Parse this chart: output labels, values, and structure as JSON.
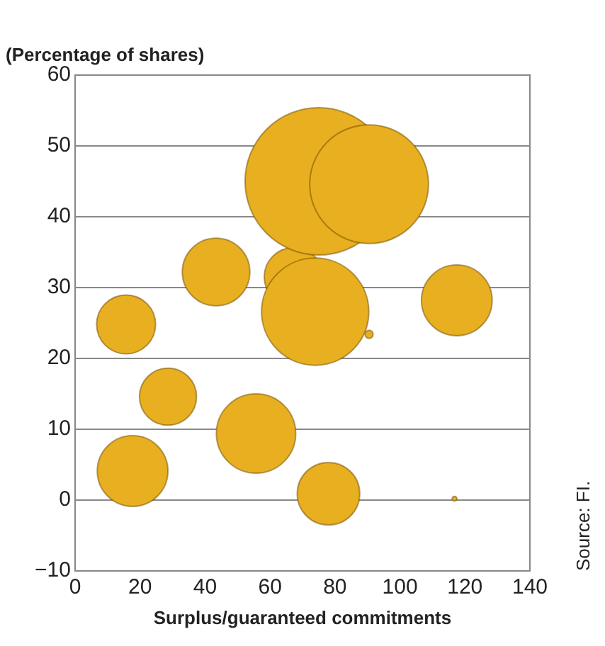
{
  "chart_data": {
    "type": "bubble",
    "title": "(Percentage of shares)",
    "xlabel": "Surplus/guaranteed commitments",
    "x": [
      17.7,
      28.6,
      15.7,
      43.4,
      55.7,
      67.3,
      73.9,
      90.5,
      75,
      90.5,
      78,
      117.5,
      116.8
    ],
    "values": [
      4.1,
      14.6,
      24.8,
      32.2,
      9.4,
      31.5,
      26.6,
      23.4,
      45,
      44.6,
      0.9,
      28.2,
      0.2
    ],
    "sizes": [
      0.23,
      0.15,
      0.16,
      0.21,
      0.29,
      0.16,
      0.53,
      0.003,
      1,
      0.65,
      0.18,
      0.23,
      0.001
    ],
    "color": "#e8b020",
    "xlim": [
      0,
      140
    ],
    "xticks": [
      0,
      20,
      40,
      60,
      80,
      100,
      120,
      140
    ],
    "ylim": [
      -10,
      60
    ],
    "yticks": [
      -10,
      0,
      10,
      20,
      30,
      40,
      50,
      60
    ],
    "grid": "y",
    "legend": false,
    "annotations": [
      "Source: FI."
    ]
  }
}
